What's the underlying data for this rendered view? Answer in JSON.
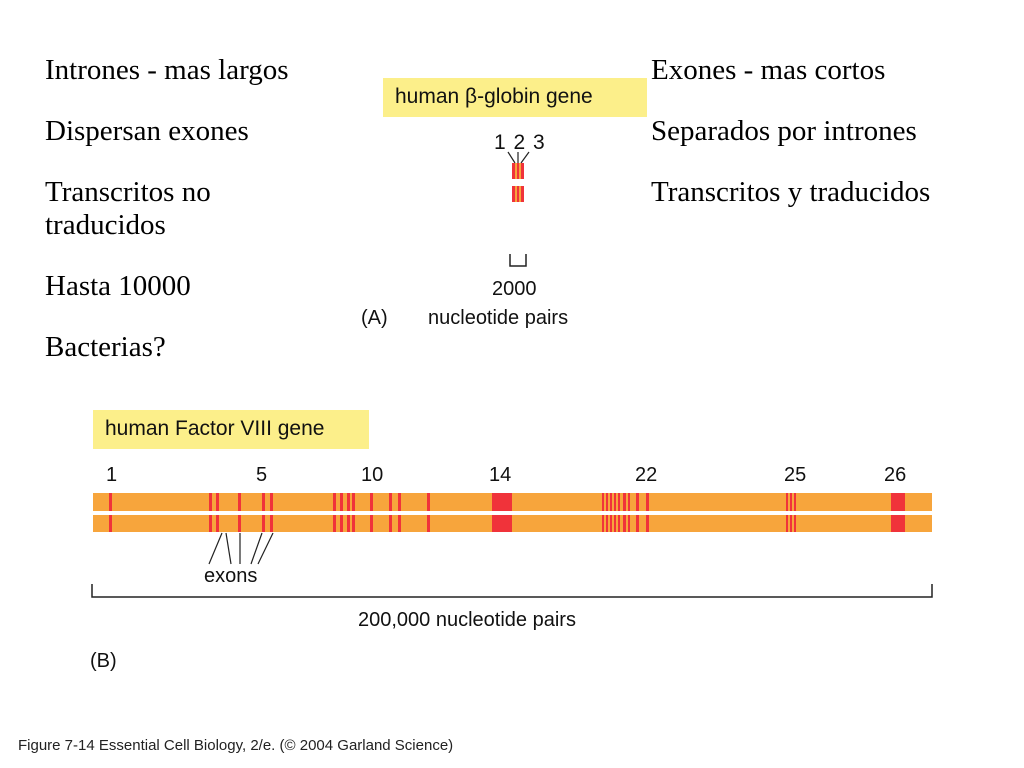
{
  "left_column": {
    "items": [
      "Intrones - mas largos",
      "Dispersan exones",
      "Transcritos no traducidos",
      "Hasta 10000",
      "Bacterias?"
    ]
  },
  "right_column": {
    "items": [
      "Exones - mas cortos",
      "Separados por intrones",
      "Transcritos y traducidos"
    ]
  },
  "panel_a": {
    "title": "human β-globin gene",
    "exon_labels": "1 2 3",
    "scale_value": "2000",
    "scale_unit": "nucleotide pairs",
    "panel_label": "(A)"
  },
  "panel_b": {
    "title": "human Factor VIII gene",
    "exon_numbers": [
      "1",
      "5",
      "10",
      "14",
      "22",
      "25",
      "26"
    ],
    "exons_label": "exons",
    "scale_label": "200,000 nucleotide pairs",
    "panel_label": "(B)"
  },
  "caption": "Figure 7-14 Essential Cell Biology, 2/e. (© 2004 Garland Science)",
  "colors": {
    "gene_body": "#f7a53c",
    "exon": "#f0333a",
    "label_bg": "#fcef8a"
  }
}
